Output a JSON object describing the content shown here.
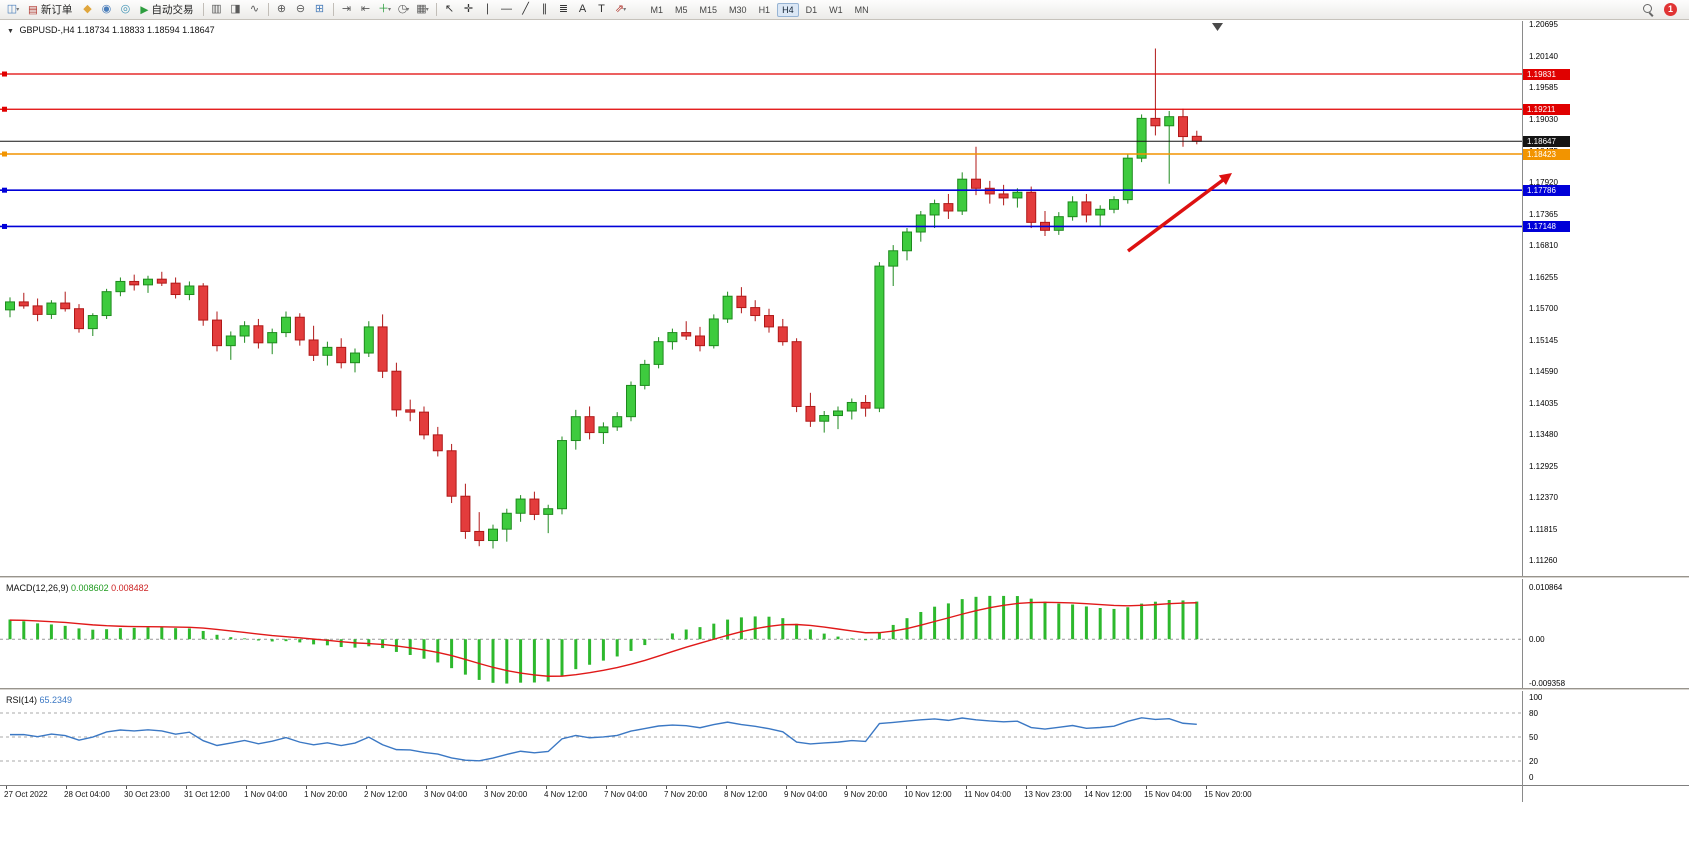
{
  "toolbar": {
    "badge": "1",
    "active_timeframe": "H4",
    "timeframes": [
      "M1",
      "M5",
      "M15",
      "M30",
      "H1",
      "H4",
      "D1",
      "W1",
      "MN"
    ],
    "items": [
      {
        "name": "new-chart",
        "glyph": "◫",
        "color": "#4a7ebb",
        "dd": true
      },
      {
        "name": "new-order",
        "glyph": "▤",
        "color": "#b0342c",
        "label": "新订单"
      },
      {
        "name": "mql5-community",
        "glyph": "◆",
        "color": "#e0a63c"
      },
      {
        "name": "market",
        "glyph": "◉",
        "color": "#4a7ebb"
      },
      {
        "name": "signals",
        "glyph": "◎",
        "color": "#3f93b5"
      },
      {
        "name": "auto-trading",
        "glyph": "▶",
        "color": "#2e9e3f",
        "label": "自动交易"
      },
      {
        "type": "sep"
      },
      {
        "name": "bar-chart-mode",
        "glyph": "▥",
        "color": "#5a5a5a"
      },
      {
        "name": "candlestick-mode",
        "glyph": "◨",
        "color": "#5a5a5a"
      },
      {
        "name": "line-chart-mode",
        "glyph": "∿",
        "color": "#5a5a5a"
      },
      {
        "type": "sep"
      },
      {
        "name": "zoom-in",
        "glyph": "⊕",
        "color": "#5a5a5a"
      },
      {
        "name": "zoom-out",
        "glyph": "⊖",
        "color": "#5a5a5a"
      },
      {
        "name": "tile-windows",
        "glyph": "⊞",
        "color": "#4a7ebb"
      },
      {
        "type": "sep"
      },
      {
        "name": "auto-scroll",
        "glyph": "⇥",
        "color": "#5a5a5a"
      },
      {
        "name": "chart-shift",
        "glyph": "⇤",
        "color": "#5a5a5a"
      },
      {
        "name": "indicators",
        "glyph": "＋",
        "color": "#2e9e3f",
        "dd": true
      },
      {
        "name": "periods",
        "glyph": "◷",
        "color": "#5a5a5a",
        "dd": true
      },
      {
        "name": "templates",
        "glyph": "▦",
        "color": "#5a5a5a",
        "dd": true
      },
      {
        "type": "sep"
      },
      {
        "name": "cursor",
        "glyph": "↖",
        "color": "#333333"
      },
      {
        "name": "crosshair",
        "glyph": "✛",
        "color": "#333333"
      },
      {
        "name": "vertical-line",
        "glyph": "∣",
        "color": "#333333"
      },
      {
        "name": "horizontal-line",
        "glyph": "―",
        "color": "#333333"
      },
      {
        "name": "trendline",
        "glyph": "╱",
        "color": "#333333"
      },
      {
        "name": "equidistant-channel",
        "glyph": "∥",
        "color": "#333333"
      },
      {
        "name": "fibonacci",
        "glyph": "≣",
        "color": "#333333"
      },
      {
        "name": "text",
        "glyph": "A",
        "color": "#333333"
      },
      {
        "name": "text-label",
        "glyph": "T",
        "color": "#333333"
      },
      {
        "name": "arrows",
        "glyph": "⇗",
        "color": "#b0342c",
        "dd": true
      }
    ]
  },
  "chart": {
    "dropdown_glyph": "▼",
    "symbol_label": "GBPUSD-,H4",
    "ohlc_label": "1.18734 1.18833 1.18594 1.18647",
    "price_axis": {
      "top": 1.20764,
      "bottom": 1.10943,
      "labels": [
        1.20695,
        1.2014,
        1.19585,
        1.1903,
        1.18475,
        1.1792,
        1.17365,
        1.1681,
        1.16255,
        1.157,
        1.15145,
        1.1459,
        1.14035,
        1.1348,
        1.12925,
        1.1237,
        1.11815,
        1.1126
      ]
    },
    "time_labels": [
      "27 Oct 2022",
      "28 Oct 04:00",
      "30 Oct 23:00",
      "31 Oct 12:00",
      "1 Nov 04:00",
      "1 Nov 20:00",
      "2 Nov 12:00",
      "3 Nov 04:00",
      "3 Nov 20:00",
      "4 Nov 12:00",
      "7 Nov 04:00",
      "7 Nov 20:00",
      "8 Nov 12:00",
      "9 Nov 04:00",
      "9 Nov 20:00",
      "10 Nov 12:00",
      "11 Nov 04:00",
      "13 Nov 23:00",
      "14 Nov 12:00",
      "15 Nov 04:00",
      "15 Nov 20:00"
    ]
  },
  "macd": {
    "label": "MACD(12,26,9)",
    "value_main": "0.008602",
    "value_signal": "0.008482",
    "histogram_color": "#2db82d",
    "signal_color": "#e01919",
    "range_top": 0.0125,
    "range_bottom": -0.0105,
    "scale": [
      {
        "v": 0.010864,
        "text": "0.010864"
      },
      {
        "v": 0,
        "text": "0.00"
      },
      {
        "v": -0.009358,
        "text": "-0.009358"
      }
    ]
  },
  "rsi": {
    "label": "RSI(14)",
    "value": "65.2349",
    "line_color": "#3b78c4",
    "levels": [
      80,
      50,
      20
    ],
    "scale": [
      100,
      80,
      50,
      20,
      0
    ]
  },
  "chart_data": {
    "type": "candlestick",
    "symbol": "GBPUSD-",
    "period": "H4",
    "last_bar": {
      "open": 1.18734,
      "high": 1.18833,
      "low": 1.18594,
      "close": 1.18647
    },
    "colors": {
      "up_fill": "#3ecb3e",
      "up_border": "#1e8a1e",
      "down_fill": "#e33c3c",
      "down_border": "#b01818"
    },
    "hlines": [
      {
        "price": 1.19831,
        "color": "#e00000",
        "name": "resistance-line-1",
        "handle": true,
        "w": 1.2
      },
      {
        "price": 1.19211,
        "color": "#e00000",
        "name": "resistance-line-2",
        "handle": true,
        "w": 1.2
      },
      {
        "price": 1.18647,
        "color": "#141414",
        "name": "current-price-line",
        "handle": false,
        "w": 1
      },
      {
        "price": 1.18423,
        "color": "#f29400",
        "name": "pivot-line",
        "handle": true,
        "w": 1.6
      },
      {
        "price": 1.17786,
        "color": "#0000d8",
        "name": "support-line-1",
        "handle": true,
        "w": 1.6
      },
      {
        "price": 1.17148,
        "color": "#0000d8",
        "name": "support-line-2",
        "handle": true,
        "w": 1.6
      }
    ],
    "arrow": {
      "color": "#dd1111",
      "from": [
        1128,
        230
      ],
      "to": [
        1232,
        152
      ]
    },
    "candles": [
      [
        1.1568,
        1.159,
        1.1555,
        1.1582
      ],
      [
        1.1582,
        1.1598,
        1.157,
        1.1575
      ],
      [
        1.1575,
        1.1588,
        1.1548,
        1.156
      ],
      [
        1.156,
        1.1585,
        1.1552,
        1.158
      ],
      [
        1.158,
        1.16,
        1.1565,
        1.157
      ],
      [
        1.157,
        1.1578,
        1.1528,
        1.1535
      ],
      [
        1.1535,
        1.1562,
        1.1522,
        1.1558
      ],
      [
        1.1558,
        1.1605,
        1.1552,
        1.16
      ],
      [
        1.16,
        1.1625,
        1.1592,
        1.1618
      ],
      [
        1.1618,
        1.163,
        1.1602,
        1.1612
      ],
      [
        1.1612,
        1.1628,
        1.1598,
        1.1622
      ],
      [
        1.1622,
        1.1635,
        1.161,
        1.1615
      ],
      [
        1.1615,
        1.1625,
        1.1588,
        1.1595
      ],
      [
        1.1595,
        1.1618,
        1.1585,
        1.161
      ],
      [
        1.161,
        1.1615,
        1.154,
        1.155
      ],
      [
        1.155,
        1.1565,
        1.1495,
        1.1505
      ],
      [
        1.1505,
        1.153,
        1.148,
        1.1522
      ],
      [
        1.1522,
        1.1548,
        1.151,
        1.154
      ],
      [
        1.154,
        1.1552,
        1.15,
        1.151
      ],
      [
        1.151,
        1.1535,
        1.149,
        1.1528
      ],
      [
        1.1528,
        1.1565,
        1.152,
        1.1555
      ],
      [
        1.1555,
        1.1562,
        1.1505,
        1.1515
      ],
      [
        1.1515,
        1.154,
        1.1478,
        1.1488
      ],
      [
        1.1488,
        1.1512,
        1.147,
        1.1502
      ],
      [
        1.1502,
        1.1518,
        1.1465,
        1.1475
      ],
      [
        1.1475,
        1.15,
        1.1458,
        1.1492
      ],
      [
        1.1492,
        1.1548,
        1.1485,
        1.1538
      ],
      [
        1.1538,
        1.156,
        1.1448,
        1.146
      ],
      [
        1.146,
        1.1475,
        1.138,
        1.1392
      ],
      [
        1.1392,
        1.141,
        1.1372,
        1.1388
      ],
      [
        1.1388,
        1.1398,
        1.134,
        1.1348
      ],
      [
        1.1348,
        1.1362,
        1.131,
        1.132
      ],
      [
        1.132,
        1.1332,
        1.1228,
        1.124
      ],
      [
        1.124,
        1.1262,
        1.1165,
        1.1178
      ],
      [
        1.1178,
        1.1212,
        1.1152,
        1.1162
      ],
      [
        1.1162,
        1.119,
        1.1148,
        1.1182
      ],
      [
        1.1182,
        1.1218,
        1.116,
        1.121
      ],
      [
        1.121,
        1.1242,
        1.1195,
        1.1235
      ],
      [
        1.1235,
        1.1248,
        1.1198,
        1.1208
      ],
      [
        1.1208,
        1.1225,
        1.1175,
        1.1218
      ],
      [
        1.1218,
        1.1345,
        1.1208,
        1.1338
      ],
      [
        1.1338,
        1.1392,
        1.1322,
        1.138
      ],
      [
        1.138,
        1.1398,
        1.134,
        1.1352
      ],
      [
        1.1352,
        1.137,
        1.1332,
        1.1362
      ],
      [
        1.1362,
        1.1388,
        1.1355,
        1.138
      ],
      [
        1.138,
        1.1442,
        1.1372,
        1.1435
      ],
      [
        1.1435,
        1.148,
        1.1428,
        1.1472
      ],
      [
        1.1472,
        1.152,
        1.1465,
        1.1512
      ],
      [
        1.1512,
        1.1535,
        1.1498,
        1.1528
      ],
      [
        1.1528,
        1.1548,
        1.1515,
        1.1522
      ],
      [
        1.1522,
        1.1538,
        1.1495,
        1.1505
      ],
      [
        1.1505,
        1.156,
        1.15,
        1.1552
      ],
      [
        1.1552,
        1.16,
        1.1545,
        1.1592
      ],
      [
        1.1592,
        1.1608,
        1.1562,
        1.1572
      ],
      [
        1.1572,
        1.1585,
        1.1548,
        1.1558
      ],
      [
        1.1558,
        1.157,
        1.1528,
        1.1538
      ],
      [
        1.1538,
        1.1552,
        1.1505,
        1.1512
      ],
      [
        1.1512,
        1.1518,
        1.1388,
        1.1398
      ],
      [
        1.1398,
        1.1422,
        1.1362,
        1.1372
      ],
      [
        1.1372,
        1.139,
        1.1352,
        1.1382
      ],
      [
        1.1382,
        1.1398,
        1.1358,
        1.139
      ],
      [
        1.139,
        1.1412,
        1.1375,
        1.1405
      ],
      [
        1.1405,
        1.1418,
        1.138,
        1.1395
      ],
      [
        1.1395,
        1.1652,
        1.1388,
        1.1645
      ],
      [
        1.1645,
        1.1682,
        1.161,
        1.1672
      ],
      [
        1.1672,
        1.1712,
        1.1655,
        1.1705
      ],
      [
        1.1705,
        1.1742,
        1.1688,
        1.1735
      ],
      [
        1.1735,
        1.1762,
        1.1712,
        1.1755
      ],
      [
        1.1755,
        1.1772,
        1.1728,
        1.1742
      ],
      [
        1.1742,
        1.181,
        1.1735,
        1.1798
      ],
      [
        1.1798,
        1.1855,
        1.177,
        1.1782
      ],
      [
        1.1782,
        1.1795,
        1.1755,
        1.1772
      ],
      [
        1.1772,
        1.1788,
        1.1752,
        1.1765
      ],
      [
        1.1765,
        1.1782,
        1.1748,
        1.1775
      ],
      [
        1.1775,
        1.1785,
        1.1712,
        1.1722
      ],
      [
        1.1722,
        1.1742,
        1.1698,
        1.1708
      ],
      [
        1.1708,
        1.174,
        1.17,
        1.1732
      ],
      [
        1.1732,
        1.1768,
        1.1725,
        1.1758
      ],
      [
        1.1758,
        1.1772,
        1.1722,
        1.1735
      ],
      [
        1.1735,
        1.1752,
        1.1715,
        1.1745
      ],
      [
        1.1745,
        1.1768,
        1.1738,
        1.1762
      ],
      [
        1.1762,
        1.1842,
        1.1755,
        1.1835
      ],
      [
        1.1835,
        1.1912,
        1.1828,
        1.1905
      ],
      [
        1.1905,
        1.2028,
        1.1875,
        1.1892
      ],
      [
        1.1892,
        1.1918,
        1.179,
        1.1908
      ],
      [
        1.1908,
        1.1922,
        1.1855,
        1.1873
      ],
      [
        1.18734,
        1.18833,
        1.18594,
        1.18647
      ]
    ]
  }
}
